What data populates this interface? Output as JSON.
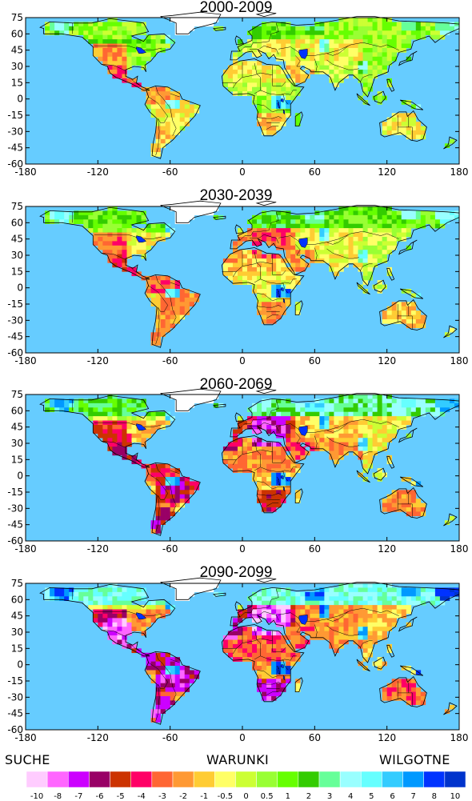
{
  "panels": [
    {
      "title": "2000-2009",
      "severity": 0.15
    },
    {
      "title": "2030-2039",
      "severity": 0.45
    },
    {
      "title": "2060-2069",
      "severity": 0.75
    },
    {
      "title": "2090-2099",
      "severity": 1.0
    }
  ],
  "axes": {
    "x_ticks": [
      "-180",
      "-120",
      "-60",
      "0",
      "60",
      "120",
      "180"
    ],
    "y_ticks": [
      "75",
      "60",
      "45",
      "30",
      "15",
      "0",
      "-15",
      "-30",
      "-45",
      "-60"
    ],
    "x_range": [
      -180,
      180
    ],
    "y_range": [
      -60,
      75
    ]
  },
  "legend": {
    "dry_label": "SUCHE",
    "mid_label": "WARUNKI",
    "wet_label": "WILGOTNE",
    "classes": [
      {
        "label": "-10",
        "color": "#ffccff"
      },
      {
        "label": "-8",
        "color": "#ff66ff"
      },
      {
        "label": "-7",
        "color": "#cc00ff"
      },
      {
        "label": "-6",
        "color": "#990066"
      },
      {
        "label": "-5",
        "color": "#cc3300"
      },
      {
        "label": "-4",
        "color": "#ff0066"
      },
      {
        "label": "-3",
        "color": "#ff6633"
      },
      {
        "label": "-2",
        "color": "#ff9933"
      },
      {
        "label": "-1",
        "color": "#ffcc33"
      },
      {
        "label": "-0.5",
        "color": "#ffff66"
      },
      {
        "label": "0",
        "color": "#ccff33"
      },
      {
        "label": "0.5",
        "color": "#99ff33"
      },
      {
        "label": "1",
        "color": "#66ff00"
      },
      {
        "label": "2",
        "color": "#33cc00"
      },
      {
        "label": "3",
        "color": "#66ff99"
      },
      {
        "label": "4",
        "color": "#99ffff"
      },
      {
        "label": "5",
        "color": "#66ffff"
      },
      {
        "label": "6",
        "color": "#33ccff"
      },
      {
        "label": "7",
        "color": "#0099ff"
      },
      {
        "label": "8",
        "color": "#0033ff"
      },
      {
        "label": "10",
        "color": "#0033cc"
      }
    ]
  },
  "colors": {
    "ocean": "#66ccff",
    "ice": "#ffffff",
    "border": "#000000"
  }
}
